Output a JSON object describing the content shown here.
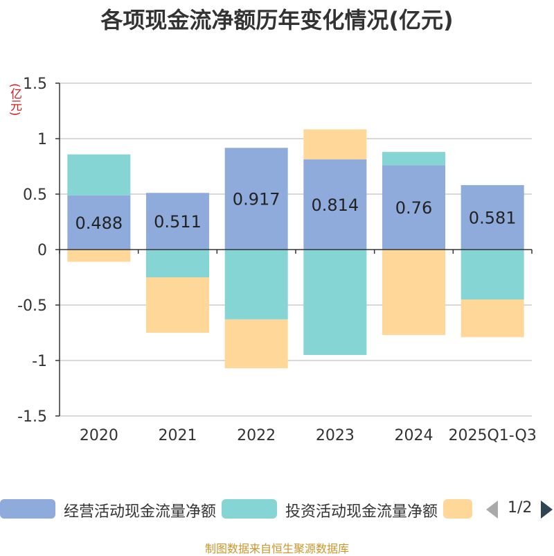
{
  "chart_data": {
    "type": "bar",
    "stacked": true,
    "title": "各项现金流净额历年变化情况(亿元)",
    "ylabel": "(亿元)",
    "ylim": [
      -1.5,
      1.5
    ],
    "yticks": [
      1.5,
      1,
      0.5,
      0,
      -0.5,
      -1,
      -1.5
    ],
    "ytick_labels": [
      "1.5",
      "1",
      "0.5",
      "0",
      "-0.5",
      "-1",
      "-1.5"
    ],
    "categories": [
      "2020",
      "2021",
      "2022",
      "2023",
      "2024",
      "2025Q1-Q3"
    ],
    "series": [
      {
        "name": "经营活动现金流量净额",
        "color": "#8eabdb",
        "values": [
          0.488,
          0.511,
          0.917,
          0.814,
          0.76,
          0.581
        ],
        "labels": [
          "0.488",
          "0.511",
          "0.917",
          "0.814",
          "0.76",
          "0.581"
        ]
      },
      {
        "name": "投资活动现金流量净额",
        "color": "#86d5d5",
        "values": [
          0.37,
          -0.25,
          -0.63,
          -0.95,
          0.12,
          -0.45
        ]
      },
      {
        "name": "",
        "color": "#ffd899",
        "values": [
          -0.11,
          -0.5,
          -0.44,
          0.27,
          -0.77,
          -0.34
        ]
      }
    ],
    "legend_position": "bottom",
    "grid": true
  },
  "legend": {
    "pager": {
      "page": "1/2"
    }
  },
  "source": "制图数据来自恒生聚源数据库"
}
